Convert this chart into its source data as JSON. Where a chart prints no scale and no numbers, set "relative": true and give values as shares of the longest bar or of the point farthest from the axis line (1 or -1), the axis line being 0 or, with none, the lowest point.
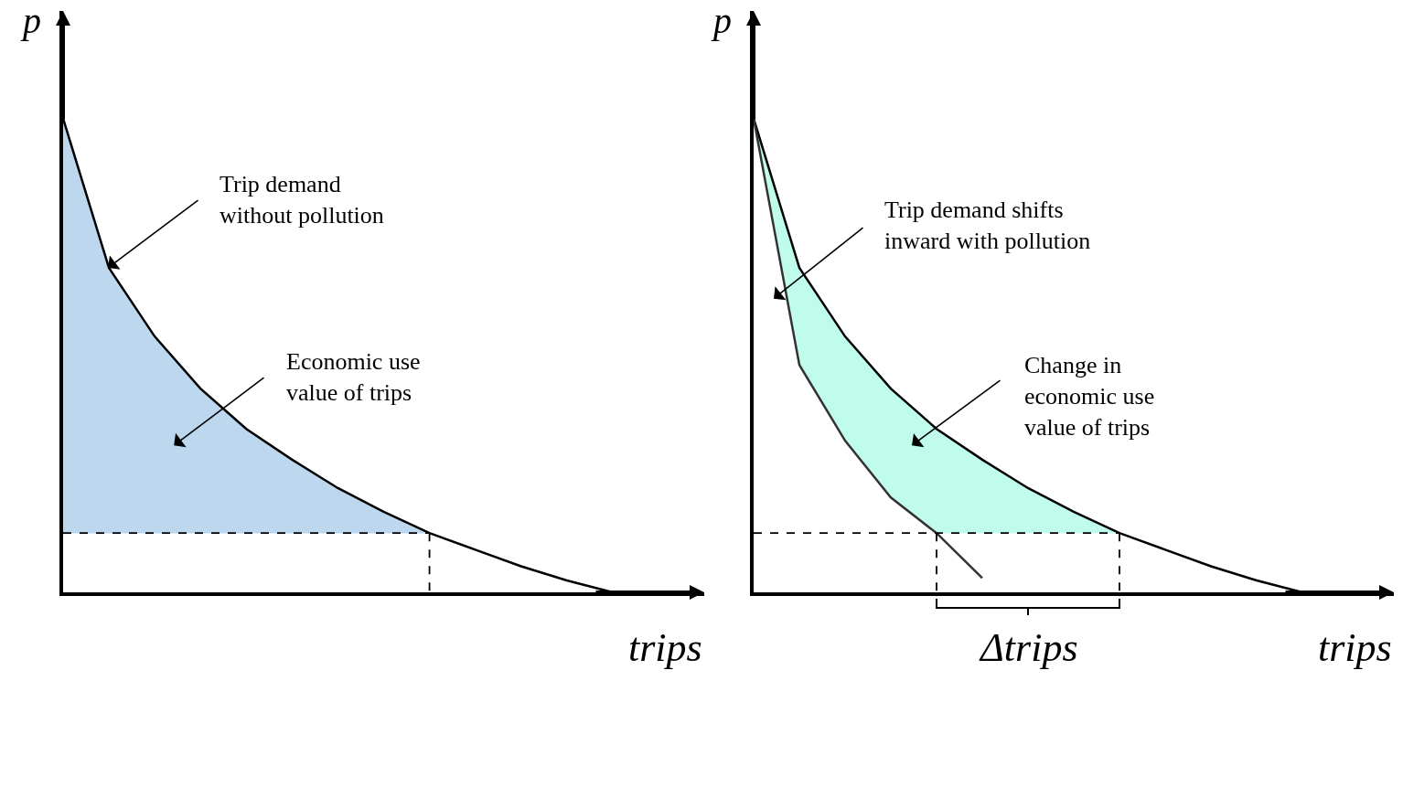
{
  "chart_data": [
    {
      "type": "line",
      "relative": true,
      "xlabel": "trips",
      "ylabel": "p",
      "categories": [
        null,
        null,
        null,
        null,
        null,
        null,
        null,
        null,
        null,
        null,
        null,
        null,
        null,
        null,
        null
      ],
      "series": [
        {
          "type": "area",
          "color": "#bdd7ee",
          "values": [
            1.0,
            0.685,
            0.54,
            0.43,
            0.345,
            0.28,
            0.22,
            0.17,
            0.125,
            null,
            null,
            null,
            null,
            null,
            null
          ]
        },
        {
          "color": "#000000",
          "values": [
            1.0,
            0.685,
            0.54,
            0.43,
            0.345,
            0.28,
            0.22,
            0.17,
            0.125,
            0.09,
            0.055,
            0.025,
            0.0,
            null,
            null
          ]
        },
        {
          "color": "#000000",
          "line_style": "dashed",
          "values": [
            0.125,
            0.125,
            0.125,
            0.125,
            0.125,
            0.125,
            0.125,
            0.125,
            0.125,
            null,
            null,
            null,
            null,
            null,
            null
          ]
        }
      ],
      "annotations": [
        "Trip demand\nwithout pollution",
        "Economic use\nvalue of trips"
      ]
    },
    {
      "type": "line",
      "relative": true,
      "xlabel": "trips",
      "ylabel": "p",
      "categories": [
        null,
        null,
        null,
        null,
        null,
        null,
        null,
        null,
        null,
        null,
        null,
        null,
        null,
        null,
        null
      ],
      "series": [
        {
          "type": "area",
          "color": "#c0fcec",
          "values": [
            1.0,
            0.685,
            0.54,
            0.43,
            0.345,
            0.28,
            0.22,
            0.17,
            0.125,
            null,
            null,
            null,
            null,
            null,
            null
          ]
        },
        {
          "color": "#000000",
          "values": [
            1.0,
            0.685,
            0.54,
            0.43,
            0.345,
            0.28,
            0.22,
            0.17,
            0.125,
            0.09,
            0.055,
            0.025,
            0.0,
            null,
            null
          ]
        },
        {
          "color": "#333333",
          "values": [
            1.0,
            0.48,
            0.32,
            0.2,
            0.125,
            0.03,
            null,
            null,
            null,
            null,
            null,
            null,
            null,
            null,
            null
          ]
        },
        {
          "color": "#000000",
          "line_style": "dashed",
          "values": [
            0.125,
            0.125,
            0.125,
            0.125,
            0.125,
            0.125,
            0.125,
            0.125,
            0.125,
            null,
            null,
            null,
            null,
            null,
            null
          ]
        }
      ],
      "annotations": [
        "Trip demand shifts\ninward with pollution",
        "Change in\neconomic use\nvalue of trips",
        "Δtrips"
      ]
    }
  ]
}
